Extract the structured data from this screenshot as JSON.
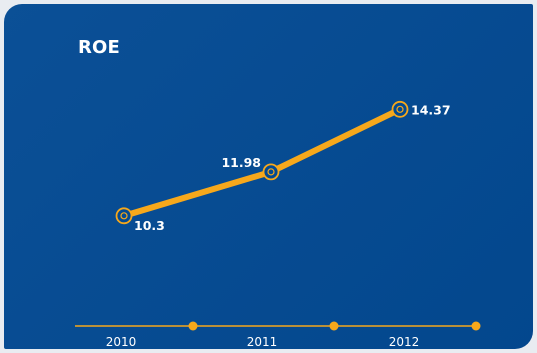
{
  "chart_data": {
    "type": "line",
    "title": "ROE",
    "categories": [
      "2010",
      "2011",
      "2012"
    ],
    "values": [
      10.3,
      11.98,
      14.37
    ],
    "data_labels": [
      "10.3",
      "11.98",
      "14.37"
    ],
    "ylim": [
      9.3,
      15.3
    ],
    "grid": false,
    "legend": "none",
    "colors": {
      "background": "#034a93",
      "line": "#f7a81b",
      "text": "#ffffff"
    }
  }
}
